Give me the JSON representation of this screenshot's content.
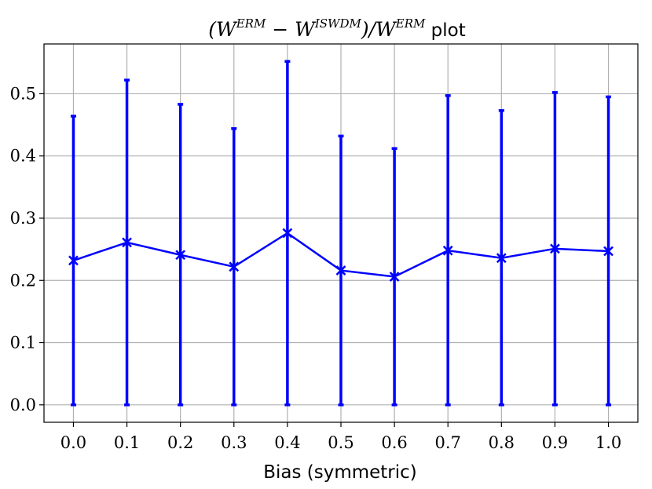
{
  "chart_data": {
    "type": "line",
    "title": {
      "open_paren": "(",
      "w1": "W",
      "sup1": "ERM",
      "minus": " − ",
      "w2": "W",
      "sup2": "ISWDM",
      "close_slash": ")/",
      "w3": "W",
      "sup3": "ERM",
      "suffix": " plot"
    },
    "xlabel": "Bias (symmetric)",
    "ylabel": "",
    "xlim": [
      -0.055,
      1.055
    ],
    "ylim": [
      -0.028,
      0.58
    ],
    "x_ticks": [
      "0.0",
      "0.1",
      "0.2",
      "0.3",
      "0.4",
      "0.5",
      "0.6",
      "0.7",
      "0.8",
      "0.9",
      "1.0"
    ],
    "y_ticks": [
      "0.0",
      "0.1",
      "0.2",
      "0.3",
      "0.4",
      "0.5"
    ],
    "grid": true,
    "series": [
      {
        "color": "#0000ff",
        "marker": "x",
        "x": [
          0.0,
          0.1,
          0.2,
          0.3,
          0.4,
          0.5,
          0.6,
          0.7,
          0.8,
          0.9,
          1.0
        ],
        "y": [
          0.232,
          0.261,
          0.241,
          0.222,
          0.276,
          0.216,
          0.206,
          0.248,
          0.236,
          0.251,
          0.247
        ],
        "err_low": [
          0,
          0,
          0,
          0,
          0,
          0,
          0,
          0,
          0,
          0,
          0
        ],
        "err_high": [
          0.464,
          0.522,
          0.483,
          0.444,
          0.552,
          0.432,
          0.412,
          0.497,
          0.473,
          0.502,
          0.495
        ]
      }
    ]
  }
}
